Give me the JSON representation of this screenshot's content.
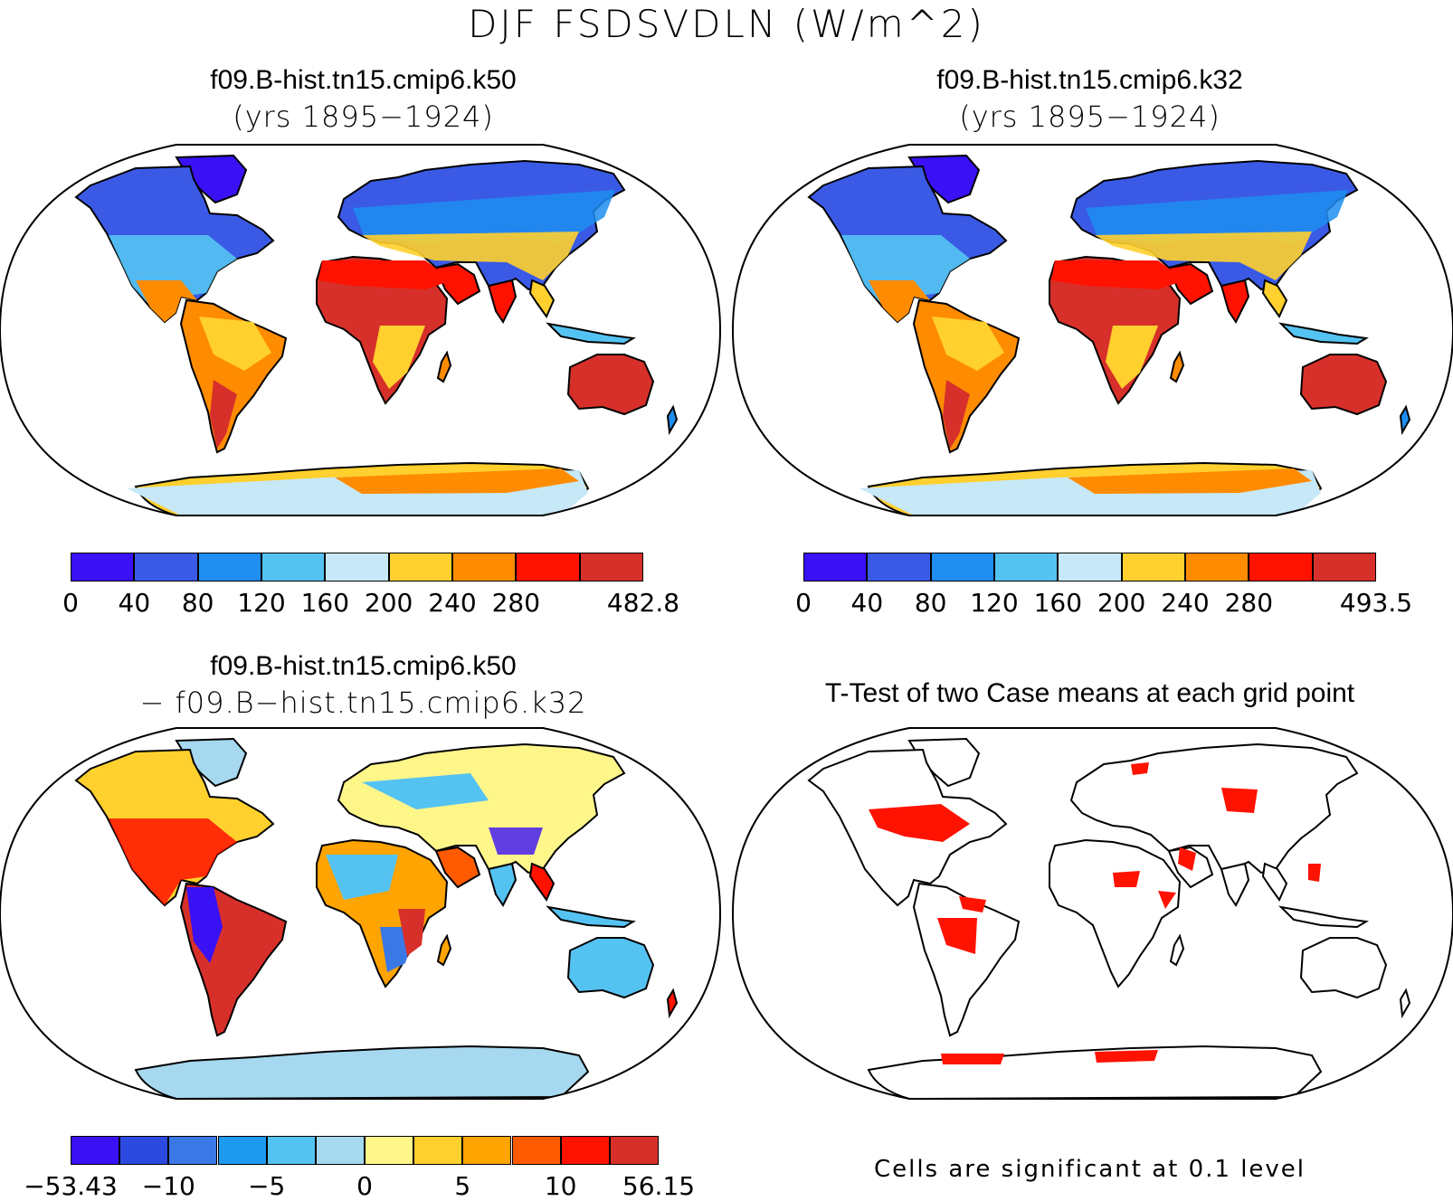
{
  "figure_title": "DJF FSDSVDLN (W/m^2)",
  "panels": [
    {
      "id": "k50",
      "title": "f09.B-hist.tn15.cmip6.k50",
      "subtitle": "(yrs 1895−1924)",
      "colorbar": {
        "colors": [
          "#3a10f5",
          "#3a5ae6",
          "#1e8ef0",
          "#55c3f2",
          "#c6e8f7",
          "#ffd02e",
          "#ff8c00",
          "#ff1200",
          "#d7302a"
        ],
        "labels": [
          "0",
          "40",
          "80",
          "120",
          "160",
          "200",
          "240",
          "280",
          "482.8"
        ]
      }
    },
    {
      "id": "k32",
      "title": "f09.B-hist.tn15.cmip6.k32",
      "subtitle": "(yrs 1895−1924)",
      "colorbar": {
        "colors": [
          "#3a10f5",
          "#3a5ae6",
          "#1e8ef0",
          "#55c3f2",
          "#c6e8f7",
          "#ffd02e",
          "#ff8c00",
          "#ff1200",
          "#d7302a"
        ],
        "labels": [
          "0",
          "40",
          "80",
          "120",
          "160",
          "200",
          "240",
          "280",
          "493.5"
        ]
      }
    },
    {
      "id": "diff",
      "title": "f09.B-hist.tn15.cmip6.k50",
      "subtitle": "− f09.B−hist.tn15.cmip6.k32",
      "colorbar": {
        "colors": [
          "#3a10f5",
          "#2c4ae0",
          "#3a78e6",
          "#1e9af0",
          "#55c3f2",
          "#a6d8f0",
          "#fff68a",
          "#ffd02e",
          "#ffa400",
          "#ff5a00",
          "#ff1200",
          "#d7302a"
        ],
        "labels": [
          "−53.43",
          "−10",
          "−5",
          "0",
          "5",
          "10",
          "56.15"
        ]
      }
    },
    {
      "id": "ttest",
      "title": "T-Test of two Case means at each grid point",
      "footnote": "Cells are significant at 0.1 level"
    }
  ]
}
